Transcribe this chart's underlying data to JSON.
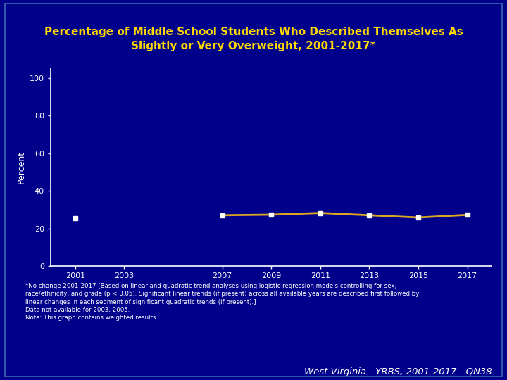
{
  "title": "Percentage of Middle School Students Who Described Themselves As\nSlightly or Very Overweight, 2001-2017*",
  "title_color": "#FFD700",
  "ylabel": "Percent",
  "background_color": "#00008B",
  "plot_bg_color": "#00008B",
  "border_color": "#1E3A8A",
  "axis_color": "#FFFFFF",
  "years": [
    2001,
    2007,
    2009,
    2011,
    2013,
    2015,
    2017
  ],
  "values": [
    25.5,
    27.0,
    27.3,
    28.2,
    27.0,
    25.8,
    27.2
  ],
  "yticks": [
    0,
    20,
    40,
    60,
    80,
    100
  ],
  "ylim": [
    0,
    105
  ],
  "xlim": [
    2000,
    2018
  ],
  "xtick_labels": [
    "2001",
    "2003",
    "2007",
    "2009",
    "2011",
    "2013",
    "2015",
    "2017"
  ],
  "xtick_positions": [
    2001,
    2003,
    2007,
    2009,
    2011,
    2013,
    2015,
    2017
  ],
  "line_color": "#DAA520",
  "marker_color": "#FFFFFF",
  "line_width": 2.0,
  "marker_size": 5,
  "footnote": "*No change 2001-2017 [Based on linear and quadratic trend analyses using logistic regression models controlling for sex,\nrace/ethnicity, and grade (p < 0.05). Significant linear trends (if present) across all available years are described first followed by\nlinear changes in each segment of significant quadratic trends (if present).]\nData not available for 2003, 2005.\nNote: This graph contains weighted results.",
  "footnote_color": "#FFFFFF",
  "watermark": "West Virginia - YRBS, 2001-2017 - QN38",
  "watermark_color": "#FFFFFF",
  "fig_width": 7.2,
  "fig_height": 5.4,
  "dpi": 100
}
